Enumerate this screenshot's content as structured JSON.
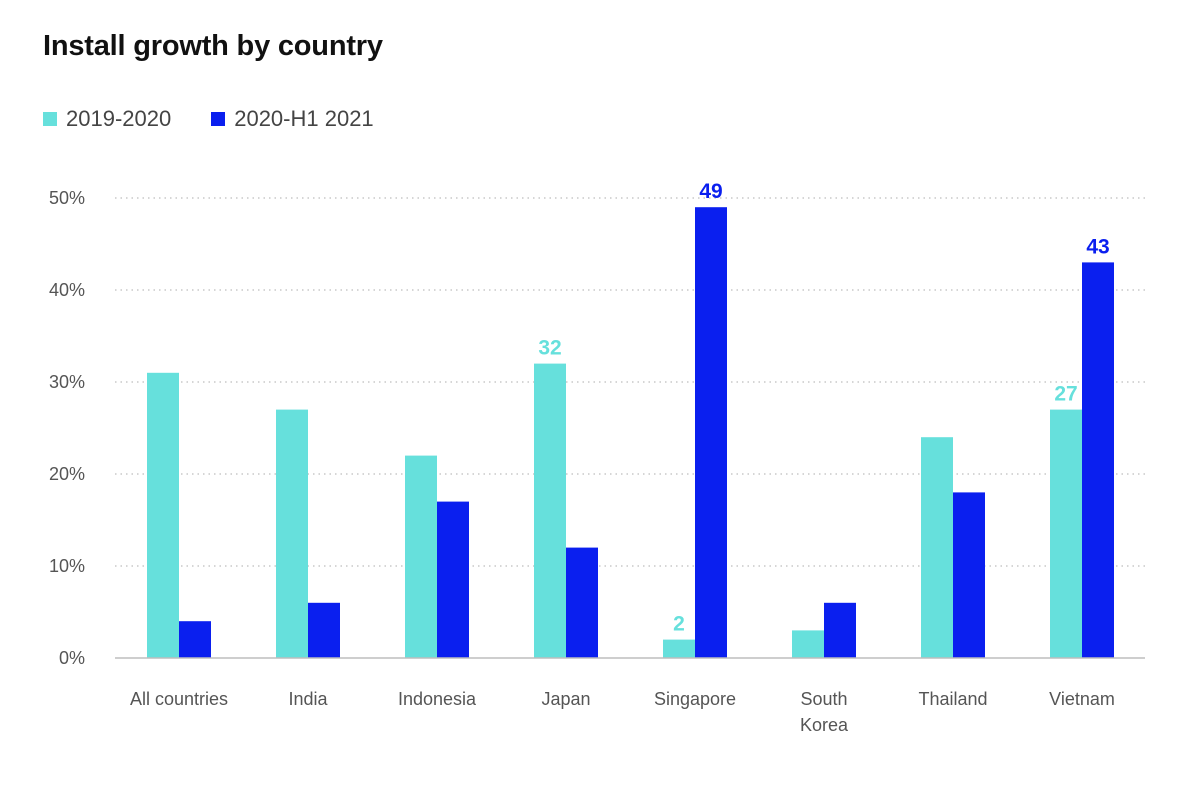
{
  "chart_data": {
    "type": "bar",
    "title": "Install growth by country",
    "xlabel": "",
    "ylabel": "",
    "ylim": [
      0,
      50
    ],
    "yticks": [
      0,
      10,
      20,
      30,
      40,
      50
    ],
    "ytick_labels": [
      "0%",
      "10%",
      "20%",
      "30%",
      "40%",
      "50%"
    ],
    "grid": true,
    "legend_position": "top-left",
    "categories": [
      [
        "All countries"
      ],
      [
        "India"
      ],
      [
        "Indonesia"
      ],
      [
        "Japan"
      ],
      [
        "Singapore"
      ],
      [
        "South",
        "Korea"
      ],
      [
        "Thailand"
      ],
      [
        "Vietnam"
      ]
    ],
    "series": [
      {
        "name": "2019-2020",
        "color": "#66e0dc",
        "values": [
          31,
          27,
          22,
          32,
          2,
          3,
          24,
          27
        ],
        "labels": [
          "",
          "",
          "",
          "32",
          "2",
          "",
          "",
          "27"
        ]
      },
      {
        "name": "2020-H1 2021",
        "color": "#0a1fef",
        "values": [
          4,
          6,
          17,
          12,
          49,
          6,
          18,
          43
        ],
        "labels": [
          "",
          "",
          "",
          "",
          "49",
          "",
          "",
          "43"
        ]
      }
    ]
  }
}
